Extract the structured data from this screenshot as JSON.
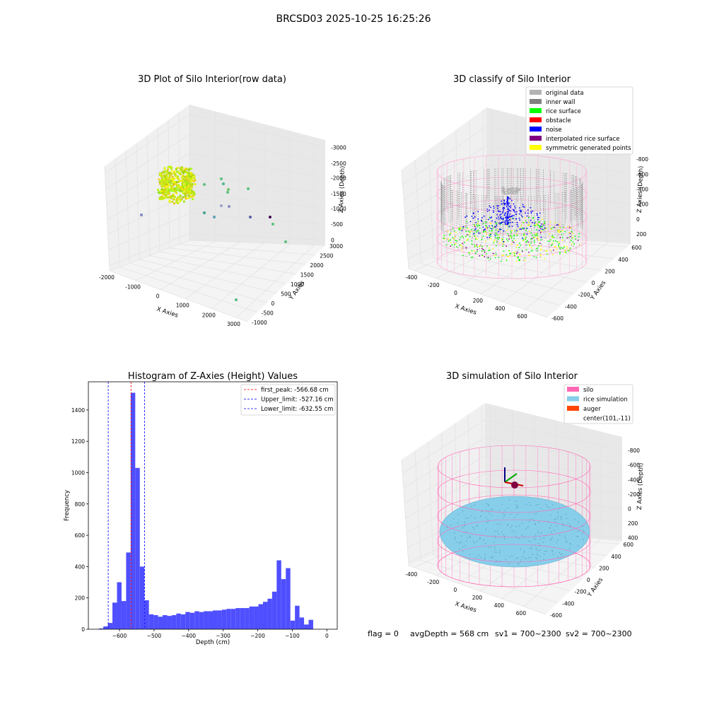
{
  "figure": {
    "suptitle": "BRCSD03 2025-10-25 16:25:26",
    "status": {
      "flag": "flag = 0",
      "avg_depth": "avgDepth = 568 cm",
      "sv1": "sv1 = 700~2300",
      "sv2": "sv2 = 700~2300"
    }
  },
  "chart_data": [
    {
      "type": "scatter",
      "title": "3D Plot of Silo Interior(row data)",
      "xlabel": "X Axies",
      "ylabel": "Y Axies",
      "zlabel": "Z Axies (Depth)",
      "x_ticks": [
        "-2000",
        "-1000",
        "0",
        "1000",
        "2000",
        "3000"
      ],
      "y_ticks": [
        "-1000",
        "-500",
        "0",
        "500",
        "1000",
        "1500",
        "2000",
        "2500",
        "3000"
      ],
      "z_ticks": [
        "0",
        "-500",
        "-1000",
        "-1500",
        "-2000",
        "-2500",
        "-3000"
      ],
      "cluster_description": "dense ring of points near the silo center",
      "outlier_colors": [
        "#5cc17f",
        "#5cc17f",
        "#4fb98a",
        "#71c666",
        "#5cc17f",
        "#5cc17f",
        "#3da28d",
        "#5a9fb3",
        "#9aa0c8",
        "#8a8fbf",
        "#7f86c4",
        "#5b5ba8",
        "#440154"
      ]
    },
    {
      "type": "scatter",
      "title": "3D classify of Silo Interior",
      "xlabel": "X Axies",
      "ylabel": "Y Axies",
      "zlabel": "Z Axies (Depth)",
      "x_ticks": [
        "-400",
        "-200",
        "0",
        "200",
        "400",
        "600"
      ],
      "y_ticks": [
        "-600",
        "-400",
        "-200",
        "0",
        "200",
        "400",
        "600"
      ],
      "z_ticks": [
        "200",
        "0",
        "-200",
        "-400",
        "-600",
        "-800"
      ],
      "legend": [
        {
          "label": "original data",
          "color": "#b3b3b3"
        },
        {
          "label": "inner wall",
          "color": "#808080"
        },
        {
          "label": "rice surface",
          "color": "#00ff00"
        },
        {
          "label": "obstacle",
          "color": "#ff0000"
        },
        {
          "label": "noise",
          "color": "#0000ff"
        },
        {
          "label": "interpolated rice surface",
          "color": "#800080"
        },
        {
          "label": "symmetric generated points",
          "color": "#ffff00"
        }
      ],
      "legend_location": "top-right"
    },
    {
      "type": "bar",
      "title": "Histogram of Z-Axies (Height) Values",
      "xlabel": "Depth (cm)",
      "ylabel": "Frequency",
      "xlim": [
        -690,
        30
      ],
      "ylim": [
        0,
        1580
      ],
      "x_ticks": [
        -600,
        -500,
        -400,
        -300,
        -200,
        -100,
        0
      ],
      "y_ticks": [
        0,
        200,
        400,
        600,
        800,
        1000,
        1200,
        1400
      ],
      "bin_start": -660,
      "bin_width": 13.2,
      "values": [
        5,
        18,
        40,
        170,
        300,
        180,
        490,
        1510,
        1030,
        400,
        185,
        95,
        90,
        80,
        90,
        85,
        90,
        100,
        95,
        110,
        105,
        115,
        110,
        115,
        115,
        120,
        120,
        125,
        130,
        130,
        135,
        135,
        135,
        145,
        145,
        160,
        175,
        195,
        240,
        440,
        320,
        390,
        55,
        150,
        75,
        30,
        60
      ],
      "bar_color": "#4f4fff",
      "lines": [
        {
          "label": "first_peak: -566.68 cm",
          "x": -566.68,
          "color": "#ff0000"
        },
        {
          "label": "Upper_limit: -527.16 cm",
          "x": -527.16,
          "color": "#0000ff"
        },
        {
          "label": "Lower_limit: -632.55 cm",
          "x": -632.55,
          "color": "#0000ff"
        }
      ],
      "legend_location": "top-right"
    },
    {
      "type": "scatter",
      "title": "3D simulation of Silo Interior",
      "xlabel": "X Axies",
      "ylabel": "Y Axies",
      "zlabel": "Z Axies (Depth)",
      "x_ticks": [
        "-400",
        "-200",
        "0",
        "200",
        "400",
        "600"
      ],
      "y_ticks": [
        "-600",
        "-400",
        "-200",
        "0",
        "200",
        "400",
        "600"
      ],
      "z_ticks": [
        "400",
        "200",
        "0",
        "-200",
        "-400",
        "-600",
        "-800"
      ],
      "legend": [
        {
          "label": "silo",
          "color": "#ff69b4"
        },
        {
          "label": "rice simulation",
          "color": "#87ceeb"
        },
        {
          "label": "auger",
          "color": "#ff4500"
        },
        {
          "label": "center(101,-11)",
          "color": ""
        }
      ],
      "legend_location": "top-right"
    }
  ]
}
